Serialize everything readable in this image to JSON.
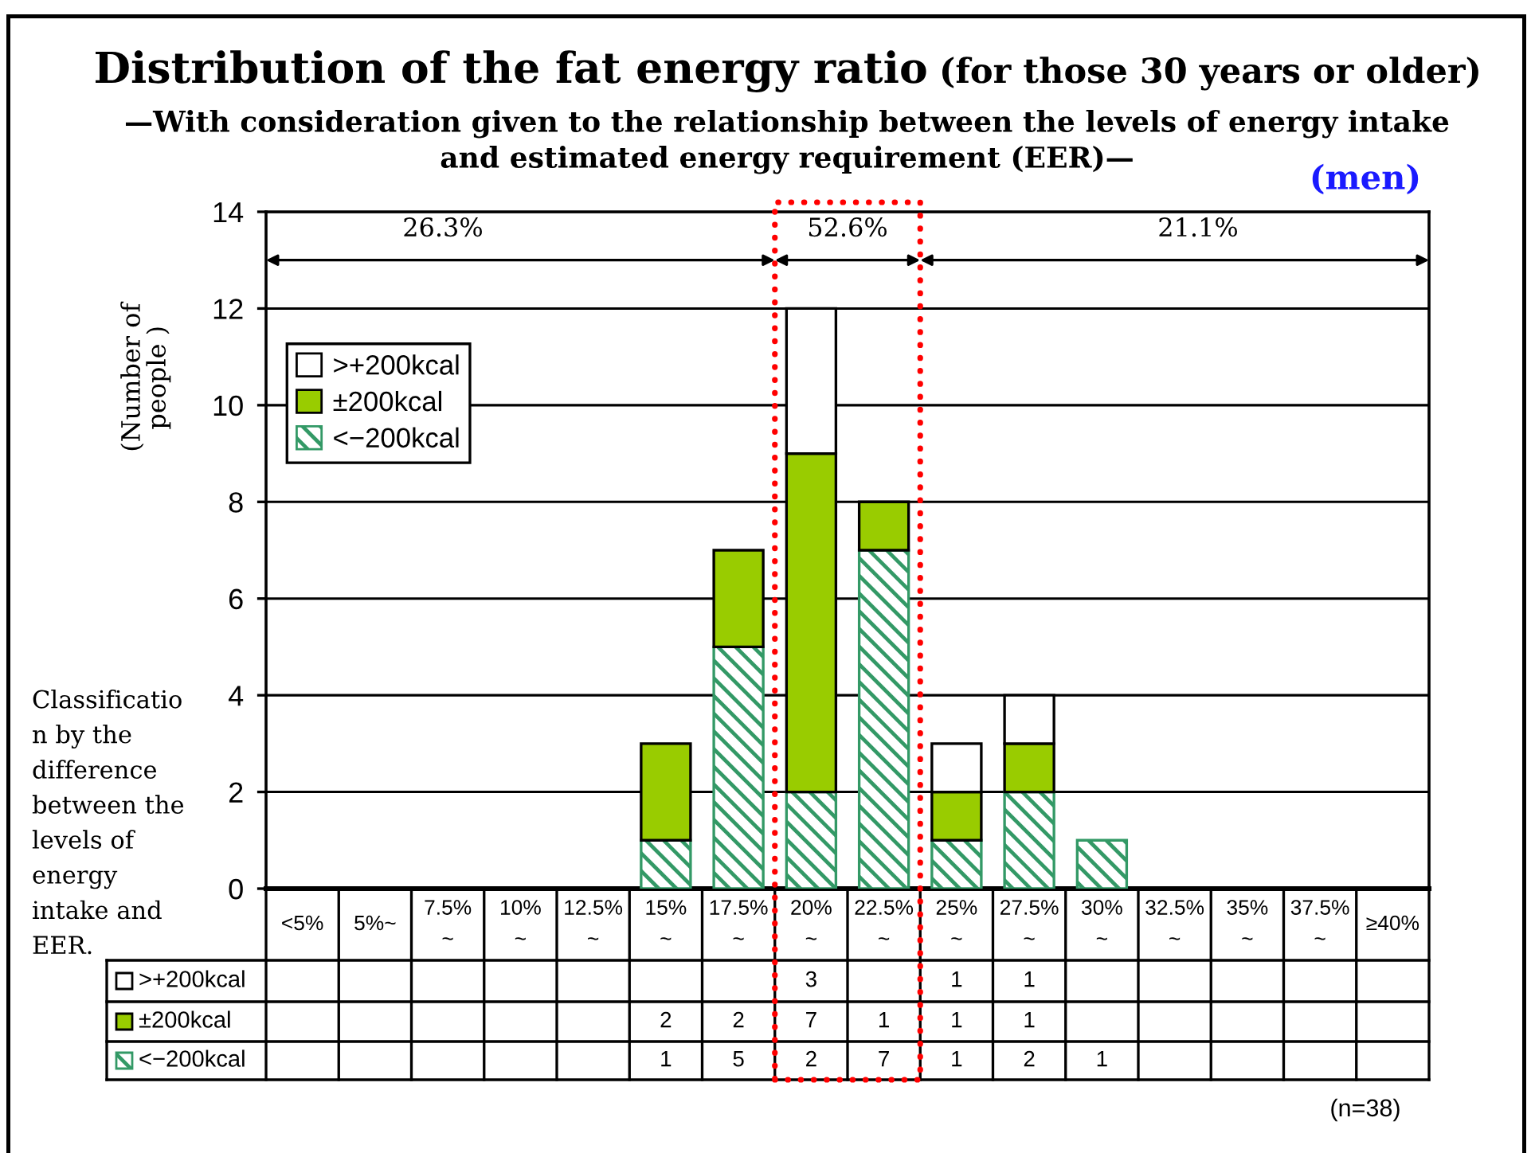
{
  "chart_data": {
    "type": "bar",
    "title": "Distribution of the fat energy ratio (for those 30 years or older)",
    "subtitle": "—With consideration given to the relationship between the levels of energy intake\nand estimated energy requirement (EER)—",
    "ylabel": "(Number of\npeople )",
    "categories": [
      "<5%",
      "5%~",
      "7.5%\n~",
      "10%\n~",
      "12.5%\n~",
      "15%\n~",
      "17.5%\n~",
      "20%\n~",
      "22.5%\n~",
      "25%\n~",
      "27.5%\n~",
      "30%\n~",
      "32.5%\n~",
      "35%\n~",
      "37.5%\n~",
      "≥40%"
    ],
    "series": [
      {
        "name": "<−200kcal",
        "color": "#339966",
        "values": [
          null,
          null,
          null,
          null,
          null,
          1,
          5,
          2,
          7,
          1,
          2,
          1,
          null,
          null,
          null,
          null
        ]
      },
      {
        "name": "±200kcal",
        "color": "#99cc00",
        "values": [
          null,
          null,
          null,
          null,
          null,
          2,
          2,
          7,
          1,
          1,
          1,
          null,
          null,
          null,
          null,
          null
        ]
      },
      {
        "name": ">+200kcal",
        "color": "#ffffff",
        "values": [
          null,
          null,
          null,
          null,
          null,
          null,
          null,
          3,
          null,
          1,
          1,
          null,
          null,
          null,
          null,
          null
        ]
      }
    ],
    "stacked": true,
    "ylim": [
      0,
      14
    ],
    "yticks": [
      0,
      2,
      4,
      6,
      8,
      10,
      12,
      14
    ],
    "grid": "y",
    "legend": "top left",
    "data_labels": true,
    "annotations": [
      "26.3%",
      "52.6%",
      "21.1%",
      "(men)",
      "Classificatio\nn by the\ndifference\nbetween the\nlevels of\nenergy\nintake and\nEER.",
      "(n=38)"
    ]
  }
}
